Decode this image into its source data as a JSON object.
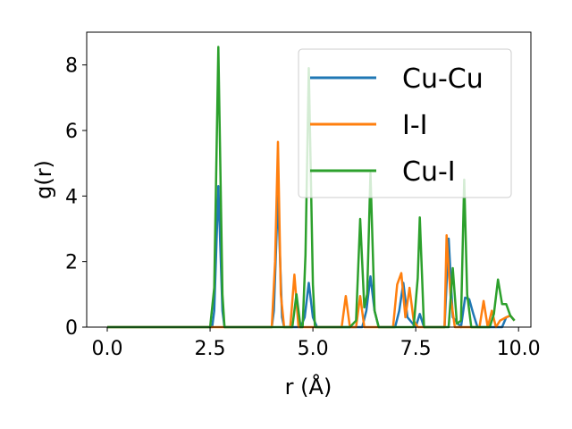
{
  "chart_data": {
    "type": "line",
    "title": "",
    "xlabel": "r (Å)",
    "ylabel": "g(r)",
    "xlim": [
      -0.5,
      10.3
    ],
    "ylim": [
      0,
      9
    ],
    "xticks": [
      "0.0",
      "2.5",
      "5.0",
      "7.5",
      "10.0"
    ],
    "yticks": [
      "0",
      "2",
      "4",
      "6",
      "8"
    ],
    "xtick_values": [
      0,
      2.5,
      5.0,
      7.5,
      10.0
    ],
    "ytick_values": [
      0,
      2,
      4,
      6,
      8
    ],
    "grid": false,
    "legend_position": "top-right",
    "series": [
      {
        "name": "Cu-Cu",
        "color": "#1f77b4",
        "x": [
          0,
          2.55,
          2.6,
          2.7,
          2.8,
          2.85,
          4.0,
          4.05,
          4.15,
          4.25,
          4.3,
          4.7,
          4.8,
          4.9,
          5.0,
          5.1,
          6.2,
          6.3,
          6.4,
          6.5,
          6.6,
          7.0,
          7.1,
          7.2,
          7.3,
          7.5,
          7.6,
          7.7,
          8.2,
          8.3,
          8.4,
          8.6,
          8.7,
          8.8,
          8.9,
          9.0,
          9.6,
          9.7,
          9.8,
          9.9
        ],
        "y": [
          0,
          0,
          0.5,
          4.3,
          0.5,
          0,
          0,
          0.5,
          4.0,
          0.3,
          0,
          0,
          0.3,
          1.35,
          0.3,
          0,
          0,
          0.5,
          1.55,
          0.5,
          0,
          0,
          0.5,
          1.35,
          0.3,
          0,
          0.4,
          0,
          0,
          2.7,
          0.3,
          0,
          0.9,
          0.85,
          0.4,
          0,
          0,
          0.3,
          0.35,
          0.2
        ]
      },
      {
        "name": "I-I",
        "color": "#ff7f0e",
        "x": [
          0,
          4.0,
          4.08,
          4.15,
          4.22,
          4.3,
          4.45,
          4.55,
          4.65,
          5.7,
          5.8,
          5.9,
          6.05,
          6.15,
          6.25,
          6.95,
          7.05,
          7.15,
          7.25,
          7.35,
          7.45,
          7.55,
          8.2,
          8.25,
          8.3,
          8.35,
          8.45,
          9.05,
          9.15,
          9.25,
          9.35,
          9.45,
          9.55,
          9.7,
          9.8,
          9.9
        ],
        "y": [
          0,
          0,
          2.0,
          5.65,
          1.0,
          0,
          0,
          1.6,
          0,
          0,
          0.95,
          0,
          0,
          0.95,
          0,
          0,
          1.3,
          1.65,
          0.3,
          1.2,
          0.2,
          0,
          0,
          2.8,
          1.8,
          0.9,
          0,
          0,
          0.8,
          0,
          0.5,
          0,
          0.2,
          0.3,
          0.35,
          0.2
        ]
      },
      {
        "name": "Cu-I",
        "color": "#2ca02c",
        "x": [
          0,
          2.5,
          2.6,
          2.7,
          2.8,
          2.85,
          4.5,
          4.6,
          4.7,
          4.75,
          4.82,
          4.9,
          5.0,
          5.05,
          5.9,
          6.05,
          6.15,
          6.25,
          6.32,
          6.4,
          6.5,
          6.6,
          7.45,
          7.55,
          7.6,
          7.7,
          8.3,
          8.4,
          8.5,
          8.6,
          8.68,
          8.75,
          8.85,
          9.3,
          9.4,
          9.5,
          9.6,
          9.7,
          9.8,
          9.9
        ],
        "y": [
          0,
          0,
          1.2,
          8.55,
          1.0,
          0,
          0,
          1.0,
          0,
          0,
          2.2,
          7.9,
          1.3,
          0,
          0,
          0.2,
          3.3,
          0.6,
          1.0,
          4.7,
          0.5,
          0,
          0,
          1.5,
          3.35,
          0,
          0,
          1.8,
          0.1,
          0.2,
          4.5,
          1.0,
          0,
          0,
          0.4,
          1.45,
          0.7,
          0.7,
          0.35,
          0.2
        ]
      }
    ]
  }
}
